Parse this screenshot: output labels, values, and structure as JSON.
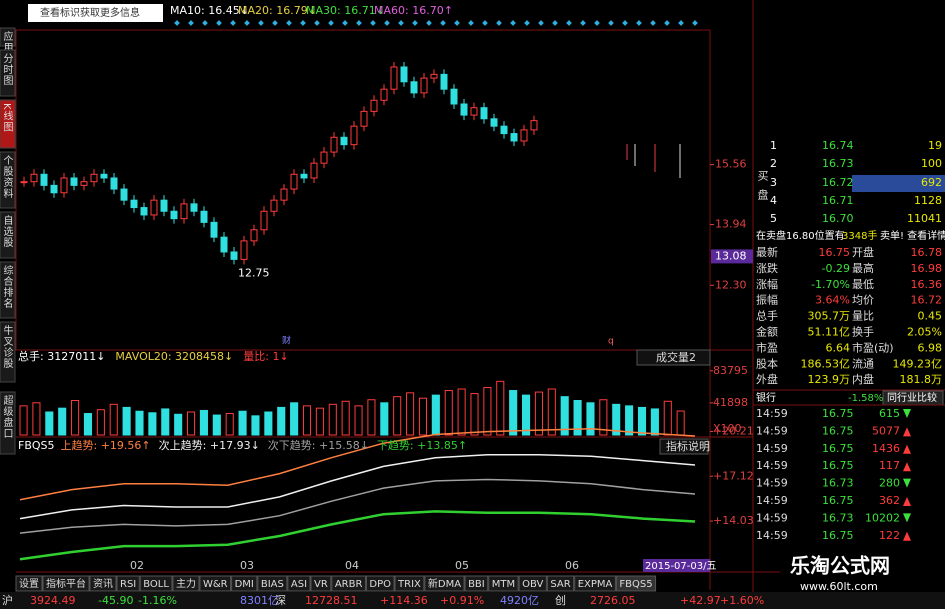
{
  "toolbar": {
    "info": "查看标识获取更多信息",
    "ma_labels": [
      {
        "text": "MA10: 16.45↓",
        "color": "#ffffff"
      },
      {
        "text": "MA20: 16.79↓",
        "color": "#e8d040"
      },
      {
        "text": "MA30: 16.71↓",
        "color": "#40e040"
      },
      {
        "text": "MA60: 16.70↑",
        "color": "#e060e0"
      }
    ]
  },
  "sidebar": [
    "应用",
    "分时图",
    "K线图",
    "个股资料",
    "自选股",
    "综合排名",
    "牛叉诊股",
    "超级盘口"
  ],
  "price_chart": {
    "ylim": [
      10.55,
      19.2
    ],
    "yticks": [
      15.56,
      13.94,
      {
        "value": 12.3,
        "label": "12.30"
      }
    ],
    "cursor_price": 13.08,
    "low_label": "12.75",
    "marks": [
      "财",
      "q"
    ],
    "up_color": "#ff3c3c",
    "down_color": "#30e0e0",
    "closes": [
      15.1,
      15.3,
      15.0,
      14.8,
      15.2,
      15.0,
      15.1,
      15.3,
      15.2,
      14.9,
      14.6,
      14.4,
      14.2,
      14.6,
      14.3,
      14.1,
      14.5,
      14.3,
      14.0,
      13.6,
      13.2,
      13.0,
      13.5,
      13.8,
      14.3,
      14.6,
      14.9,
      15.3,
      15.2,
      15.6,
      15.9,
      16.3,
      16.1,
      16.6,
      17.0,
      17.3,
      17.6,
      18.2,
      17.8,
      17.5,
      17.9,
      18.0,
      17.6,
      17.2,
      16.9,
      17.1,
      16.8,
      16.6,
      16.4,
      16.2,
      16.5,
      16.75
    ]
  },
  "volume": {
    "header": [
      {
        "text": "总手: 3127011↓",
        "color": "#ffffff"
      },
      {
        "text": "MAVOL20: 3208458↓",
        "color": "#e8d040"
      },
      {
        "text": "量比: 1↓",
        "color": "#ff3c3c"
      }
    ],
    "selector": "成交量2",
    "ylim": [
      0,
      90000
    ],
    "yticks": [
      83795,
      41898
    ],
    "unit": "X100",
    "values": [
      38000,
      42000,
      30000,
      35000,
      45000,
      28000,
      33000,
      40000,
      36000,
      31000,
      29000,
      34000,
      27000,
      30000,
      32000,
      26000,
      28000,
      31000,
      25000,
      30000,
      36000,
      42000,
      38000,
      35000,
      40000,
      44000,
      38000,
      46000,
      42000,
      50000,
      55000,
      48000,
      52000,
      58000,
      60000,
      54000,
      62000,
      70000,
      58000,
      52000,
      56000,
      60000,
      50000,
      45000,
      42000,
      46000,
      40000,
      38000,
      36000,
      34000,
      44000,
      31270
    ]
  },
  "indicator": {
    "name": "FBQS5",
    "button": "指标说明",
    "ylim": [
      11,
      21
    ],
    "yticks": [
      {
        "value": 20.21,
        "label": "+20.21"
      },
      {
        "value": 17.12,
        "label": "+17.12"
      },
      {
        "value": 14.03,
        "label": "+14.03"
      }
    ],
    "series": [
      {
        "name": "上趋势: +19.56↑",
        "color": "#ff8040",
        "values": [
          15.5,
          16.2,
          16.6,
          16.6,
          16.5,
          17.3,
          18.4,
          19.4,
          20.0,
          20.2,
          20.3,
          20.4,
          20.1,
          19.9
        ]
      },
      {
        "name": "次上趋势: +17.93↓",
        "color": "#f0f0f0",
        "values": [
          14.2,
          14.8,
          15.1,
          15.0,
          15.0,
          15.7,
          16.8,
          17.8,
          18.4,
          18.6,
          18.6,
          18.5,
          18.2,
          17.9
        ]
      },
      {
        "name": "次下趋势: +15.58↓",
        "color": "#a0a0a0",
        "values": [
          13.2,
          13.6,
          13.8,
          13.7,
          13.8,
          14.4,
          15.4,
          16.3,
          16.8,
          16.9,
          16.8,
          16.6,
          16.2,
          15.9
        ]
      },
      {
        "name": "下趋势: +13.85↑",
        "color": "#30d030",
        "values": [
          11.4,
          11.9,
          12.3,
          12.3,
          12.4,
          13.0,
          13.8,
          14.5,
          14.7,
          14.6,
          14.6,
          14.5,
          14.2,
          14.0
        ]
      }
    ]
  },
  "months": [
    "02",
    "03",
    "04",
    "05",
    "06"
  ],
  "date_label": "2015-07-03/五",
  "order_book": {
    "label": "买盘",
    "rows": [
      [
        "1",
        "16.74",
        "19"
      ],
      [
        "2",
        "16.73",
        "100"
      ],
      [
        "3",
        "16.72",
        "692"
      ],
      [
        "4",
        "16.71",
        "1128"
      ],
      [
        "5",
        "16.70",
        "11041"
      ]
    ],
    "notice": "在卖盘16.80位置有",
    "notice_qty": "3348手",
    "notice_link": "卖单! 查看详情"
  },
  "stats": [
    [
      "最新",
      "16.75",
      "开盘",
      "16.78"
    ],
    [
      "涨跌",
      "-0.29",
      "最高",
      "16.98"
    ],
    [
      "涨幅",
      "-1.70%",
      "最低",
      "16.36"
    ],
    [
      "振幅",
      "3.64%",
      "均价",
      "16.72"
    ],
    [
      "总手",
      "305.7万",
      "量比",
      "0.45"
    ],
    [
      "金额",
      "51.11亿",
      "换手",
      "2.05%"
    ],
    [
      "市盈",
      "6.64",
      "市盈(动)",
      "6.98"
    ],
    [
      "股本",
      "186.53亿",
      "流通",
      "149.23亿"
    ],
    [
      "外盘",
      "123.9万",
      "内盘",
      "181.8万"
    ]
  ],
  "sector": [
    "银行",
    "-1.58%",
    "同行业比较"
  ],
  "ticks": [
    [
      "14:59",
      "16.75",
      "615",
      "down"
    ],
    [
      "14:59",
      "16.75",
      "5077",
      "up"
    ],
    [
      "14:59",
      "16.75",
      "1436",
      "up"
    ],
    [
      "14:59",
      "16.75",
      "117",
      "up"
    ],
    [
      "14:59",
      "16.73",
      "280",
      "down"
    ],
    [
      "14:59",
      "16.75",
      "362",
      "up"
    ],
    [
      "14:59",
      "16.73",
      "10202",
      "down"
    ],
    [
      "14:59",
      "16.75",
      "122",
      "up"
    ]
  ],
  "tabs": [
    "设置",
    "指标平台",
    "资讯",
    "RSI",
    "BOLL",
    "主力",
    "W&R",
    "DMI",
    "BIAS",
    "ASI",
    "VR",
    "ARBR",
    "DPO",
    "TRIX",
    "新DMA",
    "BBI",
    "MTM",
    "OBV",
    "SAR",
    "EXPMA",
    "FBQS5"
  ],
  "status": [
    "沪",
    "3924.49",
    "-45.90",
    "-1.16%",
    "8301亿",
    "深",
    "12728.51",
    "+114.36",
    "+0.91%",
    "4920亿",
    "创",
    "2726.05",
    "+42.97",
    "+1.60%"
  ],
  "watermark": [
    "乐淘公式网",
    "www.60lt.com"
  ]
}
